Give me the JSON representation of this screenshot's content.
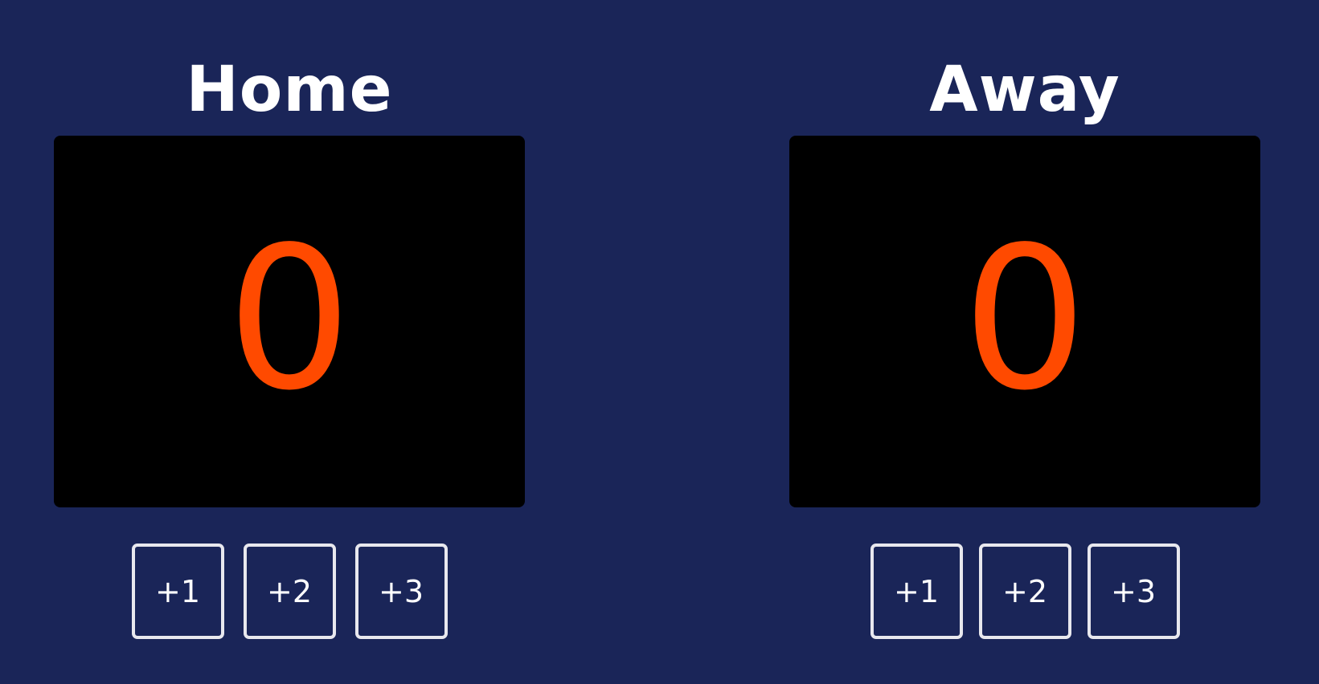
{
  "colors": {
    "background": "#1a2558",
    "score_panel": "#000000",
    "score_digit": "#ff4a00",
    "button_border": "#e8e8ee",
    "text": "#ffffff"
  },
  "home": {
    "title": "Home",
    "score": "0",
    "buttons": [
      "+1",
      "+2",
      "+3"
    ]
  },
  "away": {
    "title": "Away",
    "score": "0",
    "buttons": [
      "+1",
      "+2",
      "+3"
    ]
  }
}
